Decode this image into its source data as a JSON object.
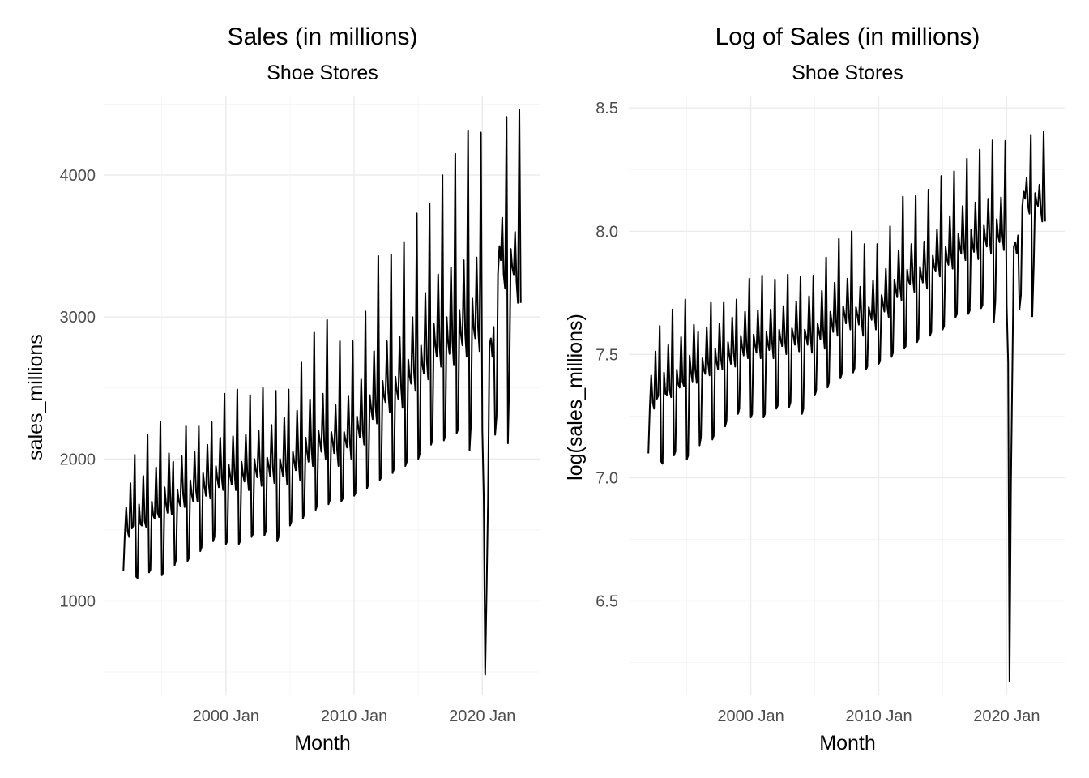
{
  "chart_data": [
    {
      "type": "line",
      "title": "Sales (in millions)",
      "subtitle": "Shoe Stores",
      "xlabel": "Month",
      "ylabel": "sales_millions",
      "x_range": [
        "1992 Jan",
        "2023 Jan"
      ],
      "ylim": [
        340,
        4560
      ],
      "x_ticks": [
        "2000 Jan",
        "2010 Jan",
        "2020 Jan"
      ],
      "y_ticks": [
        1000,
        2000,
        3000,
        4000
      ],
      "grid": true,
      "legend": "none",
      "series": [
        {
          "values": [
            [
              1992,
              1210,
              1460,
              1660,
              1490,
              1450,
              1830,
              1510,
              1530,
              2030
            ],
            [
              1993,
              1170,
              1160,
              1680,
              1540,
              1530,
              1880,
              1560,
              1520,
              2170
            ],
            [
              1994,
              1200,
              1220,
              1700,
              1600,
              1580,
              1940,
              1620,
              1590,
              2260
            ],
            [
              1995,
              1180,
              1200,
              1800,
              1680,
              1620,
              2040,
              1700,
              1610,
              1980
            ],
            [
              1996,
              1250,
              1290,
              1780,
              1700,
              1670,
              2020,
              1750,
              1660,
              2230
            ],
            [
              1997,
              1280,
              1300,
              1850,
              1750,
              1700,
              2050,
              1780,
              1700,
              2230
            ],
            [
              1998,
              1350,
              1380,
              1900,
              1800,
              1740,
              2100,
              1820,
              1720,
              2260
            ],
            [
              1999,
              1420,
              1450,
              1950,
              1860,
              1800,
              2150,
              1870,
              1780,
              2460
            ],
            [
              2000,
              1400,
              1420,
              1960,
              1880,
              1820,
              2160,
              1900,
              1780,
              2490
            ],
            [
              2001,
              1400,
              1420,
              1980,
              1890,
              1840,
              2170,
              1900,
              1780,
              2450
            ],
            [
              2002,
              1450,
              1470,
              2000,
              1920,
              1870,
              2200,
              1920,
              1810,
              2500
            ],
            [
              2003,
              1460,
              1490,
              2010,
              1950,
              1880,
              2240,
              1940,
              1830,
              2480
            ],
            [
              2004,
              1420,
              1450,
              2000,
              1940,
              1880,
              2290,
              1950,
              1820,
              2490
            ],
            [
              2005,
              1530,
              1560,
              2050,
              1980,
              1920,
              2340,
              1990,
              1850,
              2680
            ],
            [
              2006,
              1580,
              1610,
              2150,
              2050,
              1980,
              2420,
              2080,
              1950,
              2890
            ],
            [
              2007,
              1640,
              1670,
              2200,
              2120,
              2050,
              2460,
              2120,
              2000,
              2980
            ],
            [
              2008,
              1680,
              1710,
              2190,
              2120,
              2040,
              2380,
              2070,
              1950,
              2830
            ],
            [
              2009,
              1700,
              1720,
              2190,
              2130,
              2080,
              2440,
              2120,
              2000,
              2830
            ],
            [
              2010,
              1740,
              1760,
              2300,
              2220,
              2150,
              2560,
              2200,
              2100,
              3040
            ],
            [
              2011,
              1790,
              1820,
              2450,
              2350,
              2280,
              2760,
              2380,
              2250,
              3430
            ],
            [
              2012,
              1850,
              1870,
              2550,
              2440,
              2400,
              2830,
              2470,
              2330,
              3440
            ],
            [
              2013,
              1900,
              1930,
              2580,
              2480,
              2420,
              2860,
              2500,
              2360,
              3530
            ],
            [
              2014,
              1950,
              1980,
              2700,
              2580,
              2530,
              3000,
              2620,
              2480,
              3730
            ],
            [
              2015,
              2000,
              2030,
              2800,
              2660,
              2600,
              3170,
              2700,
              2560,
              3800
            ],
            [
              2016,
              2100,
              2130,
              2950,
              2800,
              2720,
              3300,
              2800,
              2650,
              4000
            ],
            [
              2017,
              2130,
              2160,
              3000,
              2820,
              2740,
              3350,
              2830,
              2660,
              4150
            ],
            [
              2018,
              2180,
              2210,
              3050,
              2880,
              2800,
              3400,
              2880,
              2720,
              4310
            ],
            [
              2019,
              2060,
              2240,
              3130,
              2920,
              2850,
              3420,
              2930,
              2760,
              4300
            ],
            [
              2020,
              2200,
              1750,
              480,
              1080,
              1700,
              2800,
              2850,
              2720,
              2930
            ],
            [
              2021,
              2170,
              2300,
              3300,
              3500,
              3400,
              3700,
              3300,
              3200,
              4410
            ],
            [
              2022,
              2110,
              2600,
              3480,
              3350,
              3300,
              3600,
              3250,
              3100,
              4460
            ],
            [
              2023,
              3100
            ]
          ]
        }
      ]
    },
    {
      "type": "line",
      "title": "Log of Sales (in millions)",
      "subtitle": "Shoe Stores",
      "xlabel": "Month",
      "ylabel": "log(sales_millions)",
      "x_range": [
        "1992 Jan",
        "2023 Jan"
      ],
      "ylim": [
        6.12,
        8.55
      ],
      "x_ticks": [
        "2000 Jan",
        "2010 Jan",
        "2020 Jan"
      ],
      "y_ticks": [
        6.5,
        7.0,
        7.5,
        8.0,
        8.5
      ],
      "grid": true,
      "legend": "none",
      "series": [
        {
          "values": "log of the left panel values"
        }
      ]
    }
  ]
}
